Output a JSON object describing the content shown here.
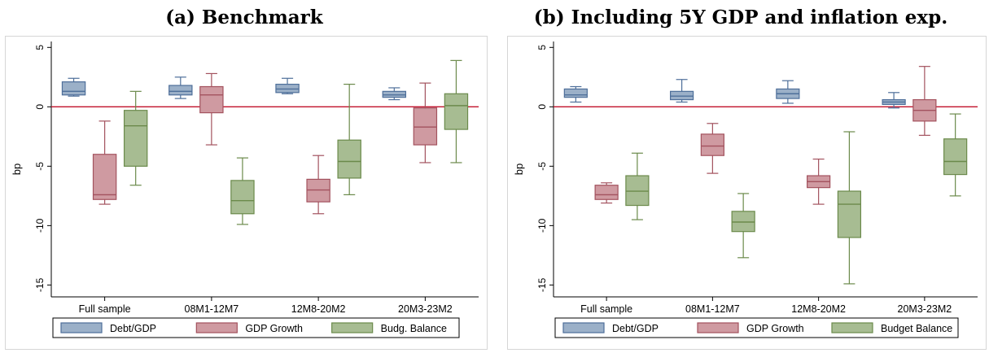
{
  "panels": [
    {
      "title": "(a) Benchmark"
    },
    {
      "title": "(b) Including 5Y GDP and inflation exp."
    }
  ],
  "chart_data": [
    {
      "type": "box",
      "title": "(a) Benchmark",
      "ylabel": "bp",
      "ylim": [
        -16,
        5.5
      ],
      "yticks": [
        5,
        0,
        -5,
        -10,
        -15
      ],
      "reference_line": 0,
      "categories": [
        "Full sample",
        "08M1-12M7",
        "12M8-20M2",
        "20M3-23M2"
      ],
      "legend_position": "bottom",
      "series": [
        {
          "name": "Debt/GDP",
          "color": "#4e6f9a",
          "fill": "#9bb0c8",
          "boxes": [
            {
              "min": 0.9,
              "q1": 1.0,
              "median": 1.3,
              "q3": 2.1,
              "max": 2.4
            },
            {
              "min": 0.7,
              "q1": 1.0,
              "median": 1.3,
              "q3": 1.8,
              "max": 2.5
            },
            {
              "min": 1.1,
              "q1": 1.2,
              "median": 1.5,
              "q3": 1.9,
              "max": 2.4
            },
            {
              "min": 0.6,
              "q1": 0.8,
              "median": 1.0,
              "q3": 1.3,
              "max": 1.6
            }
          ]
        },
        {
          "name": "GDP Growth",
          "color": "#a3525e",
          "fill": "#cf9aa1",
          "boxes": [
            {
              "min": -8.2,
              "q1": -7.8,
              "median": -7.4,
              "q3": -4.0,
              "max": -1.2
            },
            {
              "min": -3.2,
              "q1": -0.5,
              "median": 1.0,
              "q3": 1.7,
              "max": 2.8
            },
            {
              "min": -9.0,
              "q1": -8.0,
              "median": -7.0,
              "q3": -6.1,
              "max": -4.1
            },
            {
              "min": -4.7,
              "q1": -3.2,
              "median": -1.7,
              "q3": -0.1,
              "max": 2.0
            }
          ]
        },
        {
          "name": "Budg. Balance",
          "color": "#6b8a4b",
          "fill": "#a7bc92",
          "boxes": [
            {
              "min": -6.6,
              "q1": -5.0,
              "median": -1.6,
              "q3": -0.3,
              "max": 1.3
            },
            {
              "min": -9.9,
              "q1": -9.0,
              "median": -7.9,
              "q3": -6.2,
              "max": -4.3
            },
            {
              "min": -7.4,
              "q1": -6.0,
              "median": -4.6,
              "q3": -2.8,
              "max": 1.9
            },
            {
              "min": -4.7,
              "q1": -1.9,
              "median": 0.1,
              "q3": 1.1,
              "max": 3.9
            }
          ]
        }
      ]
    },
    {
      "type": "box",
      "title": "(b) Including 5Y GDP and inflation exp.",
      "ylabel": "bp",
      "ylim": [
        -16,
        5.5
      ],
      "yticks": [
        5,
        0,
        -5,
        -10,
        -15
      ],
      "reference_line": 0,
      "categories": [
        "Full sample",
        "08M1-12M7",
        "12M8-20M2",
        "20M3-23M2"
      ],
      "legend_position": "bottom",
      "series": [
        {
          "name": "Debt/GDP",
          "color": "#4e6f9a",
          "fill": "#9bb0c8",
          "boxes": [
            {
              "min": 0.4,
              "q1": 0.8,
              "median": 1.0,
              "q3": 1.5,
              "max": 1.7
            },
            {
              "min": 0.4,
              "q1": 0.6,
              "median": 0.9,
              "q3": 1.3,
              "max": 2.3
            },
            {
              "min": 0.3,
              "q1": 0.7,
              "median": 1.1,
              "q3": 1.5,
              "max": 2.2
            },
            {
              "min": -0.1,
              "q1": 0.2,
              "median": 0.4,
              "q3": 0.6,
              "max": 1.2
            }
          ]
        },
        {
          "name": "GDP Growth",
          "color": "#a3525e",
          "fill": "#cf9aa1",
          "boxes": [
            {
              "min": -8.1,
              "q1": -7.8,
              "median": -7.4,
              "q3": -6.6,
              "max": -6.4
            },
            {
              "min": -5.6,
              "q1": -4.1,
              "median": -3.3,
              "q3": -2.3,
              "max": -1.4
            },
            {
              "min": -8.2,
              "q1": -6.8,
              "median": -6.3,
              "q3": -5.8,
              "max": -4.4
            },
            {
              "min": -2.4,
              "q1": -1.2,
              "median": -0.3,
              "q3": 0.6,
              "max": 3.4
            }
          ]
        },
        {
          "name": "Budget Balance",
          "color": "#6b8a4b",
          "fill": "#a7bc92",
          "boxes": [
            {
              "min": -9.5,
              "q1": -8.3,
              "median": -7.1,
              "q3": -5.8,
              "max": -3.9
            },
            {
              "min": -12.7,
              "q1": -10.5,
              "median": -9.7,
              "q3": -8.8,
              "max": -7.3
            },
            {
              "min": -14.9,
              "q1": -11.0,
              "median": -8.2,
              "q3": -7.1,
              "max": -2.1
            },
            {
              "min": -7.5,
              "q1": -5.7,
              "median": -4.6,
              "q3": -2.7,
              "max": -0.6
            }
          ]
        }
      ]
    }
  ]
}
